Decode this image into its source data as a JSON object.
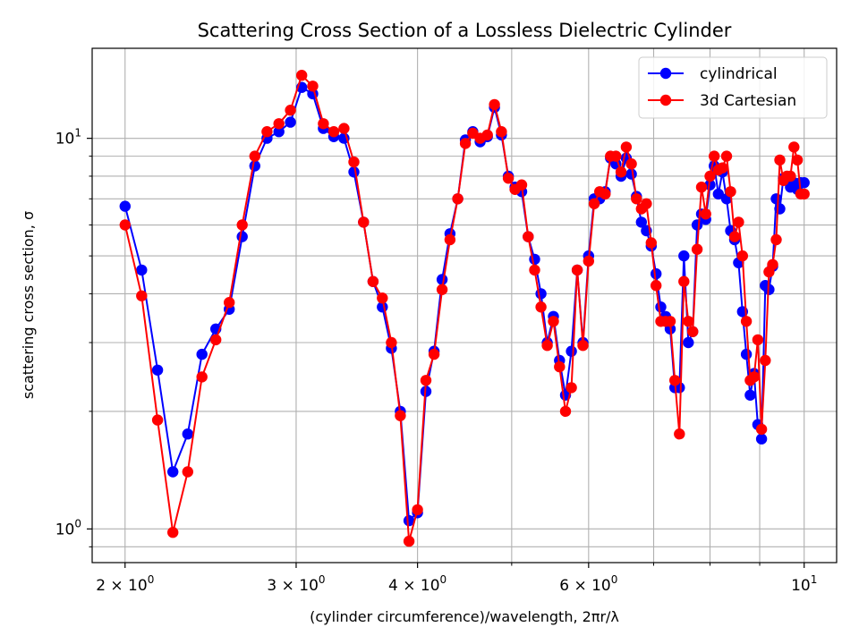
{
  "chart_data": {
    "type": "line",
    "title": "Scattering Cross Section of a Lossless Dielectric Cylinder",
    "xlabel": "(cylinder circumference)/wavelength, 2πr/λ",
    "ylabel": "scattering cross section, σ",
    "xscale": "log",
    "yscale": "log",
    "xlim": [
      1.85,
      10.8
    ],
    "ylim": [
      0.82,
      17.0
    ],
    "grid": true,
    "legend_position": "top-right",
    "x_ticks": [
      {
        "base": "2",
        "exp": "0",
        "value": 2
      },
      {
        "base": "3",
        "exp": "0",
        "value": 3
      },
      {
        "base": "4",
        "exp": "0",
        "value": 4
      },
      {
        "base": "6",
        "exp": "0",
        "value": 6
      },
      {
        "base": "10",
        "exp": "1",
        "value": 10
      }
    ],
    "y_ticks": [
      {
        "base": "10",
        "exp": "0",
        "value": 1
      },
      {
        "base": "10",
        "exp": "1",
        "value": 10
      }
    ],
    "series": [
      {
        "name": "cylindrical",
        "color": "#0000ff",
        "x": [
          2.0,
          2.08,
          2.16,
          2.24,
          2.32,
          2.4,
          2.48,
          2.56,
          2.64,
          2.72,
          2.8,
          2.88,
          2.96,
          3.04,
          3.12,
          3.2,
          3.28,
          3.36,
          3.44,
          3.52,
          3.6,
          3.68,
          3.76,
          3.84,
          3.92,
          4.0,
          4.08,
          4.16,
          4.24,
          4.32,
          4.4,
          4.48,
          4.56,
          4.64,
          4.72,
          4.8,
          4.88,
          4.96,
          5.04,
          5.12,
          5.2,
          5.28,
          5.36,
          5.44,
          5.52,
          5.6,
          5.68,
          5.76,
          5.84,
          5.92,
          6.0,
          6.08,
          6.16,
          6.24,
          6.32,
          6.4,
          6.48,
          6.56,
          6.64,
          6.72,
          6.8,
          6.88,
          6.96,
          7.04,
          7.12,
          7.2,
          7.28,
          7.36,
          7.44,
          7.52,
          7.6,
          7.68,
          7.76,
          7.84,
          7.92,
          8.0,
          8.08,
          8.16,
          8.24,
          8.32,
          8.4,
          8.48,
          8.56,
          8.64,
          8.72,
          8.8,
          8.88,
          8.96,
          9.04,
          9.12,
          9.2,
          9.28,
          9.36,
          9.44,
          9.52,
          9.6,
          9.68,
          9.76,
          9.84,
          9.92,
          10.0
        ],
        "y": [
          6.7,
          4.6,
          2.55,
          1.4,
          1.75,
          2.8,
          3.25,
          3.65,
          5.6,
          8.5,
          10.0,
          10.4,
          11.0,
          13.5,
          13.0,
          10.6,
          10.1,
          10.0,
          8.2,
          6.1,
          4.3,
          3.7,
          2.9,
          2.0,
          1.05,
          1.1,
          2.25,
          2.85,
          4.35,
          5.7,
          7.0,
          9.9,
          10.4,
          9.8,
          10.1,
          12.0,
          10.2,
          8.0,
          7.5,
          7.3,
          5.6,
          4.9,
          4.0,
          3.0,
          3.5,
          2.7,
          2.2,
          2.85,
          4.6,
          3.0,
          5.0,
          7.0,
          7.0,
          7.3,
          8.9,
          8.6,
          8.0,
          8.9,
          8.1,
          7.1,
          6.1,
          5.8,
          5.3,
          4.5,
          3.7,
          3.5,
          3.25,
          2.3,
          2.3,
          5.0,
          3.0,
          3.2,
          6.0,
          6.4,
          6.2,
          7.6,
          8.5,
          7.2,
          8.2,
          7.0,
          5.8,
          5.5,
          4.8,
          3.6,
          2.8,
          2.2,
          2.5,
          1.85,
          1.7,
          4.2,
          4.1,
          4.7,
          7.0,
          6.6,
          7.9,
          7.8,
          7.5,
          7.7,
          7.4,
          7.7,
          7.7
        ]
      },
      {
        "name": "3d Cartesian",
        "color": "#ff0000",
        "x": [
          2.0,
          2.08,
          2.16,
          2.24,
          2.32,
          2.4,
          2.48,
          2.56,
          2.64,
          2.72,
          2.8,
          2.88,
          2.96,
          3.04,
          3.12,
          3.2,
          3.28,
          3.36,
          3.44,
          3.52,
          3.6,
          3.68,
          3.76,
          3.84,
          3.92,
          4.0,
          4.08,
          4.16,
          4.24,
          4.32,
          4.4,
          4.48,
          4.56,
          4.64,
          4.72,
          4.8,
          4.88,
          4.96,
          5.04,
          5.12,
          5.2,
          5.28,
          5.36,
          5.44,
          5.52,
          5.6,
          5.68,
          5.76,
          5.84,
          5.92,
          6.0,
          6.08,
          6.16,
          6.24,
          6.32,
          6.4,
          6.48,
          6.56,
          6.64,
          6.72,
          6.8,
          6.88,
          6.96,
          7.04,
          7.12,
          7.2,
          7.28,
          7.36,
          7.44,
          7.52,
          7.6,
          7.68,
          7.76,
          7.84,
          7.92,
          8.0,
          8.08,
          8.16,
          8.24,
          8.32,
          8.4,
          8.48,
          8.56,
          8.64,
          8.72,
          8.8,
          8.88,
          8.96,
          9.04,
          9.12,
          9.2,
          9.28,
          9.36,
          9.44,
          9.52,
          9.6,
          9.68,
          9.76,
          9.84,
          9.92,
          10.0
        ],
        "y": [
          6.0,
          3.95,
          1.9,
          0.98,
          1.4,
          2.45,
          3.05,
          3.8,
          6.0,
          9.0,
          10.4,
          10.9,
          11.8,
          14.5,
          13.6,
          10.9,
          10.4,
          10.6,
          8.7,
          6.1,
          4.3,
          3.9,
          3.0,
          1.95,
          0.93,
          1.12,
          2.4,
          2.8,
          4.1,
          5.5,
          7.0,
          9.7,
          10.3,
          10.0,
          10.2,
          12.2,
          10.4,
          7.9,
          7.4,
          7.6,
          5.6,
          4.6,
          3.7,
          2.95,
          3.4,
          2.6,
          2.0,
          2.3,
          4.6,
          2.95,
          4.85,
          6.8,
          7.3,
          7.2,
          9.0,
          9.0,
          8.2,
          9.5,
          8.6,
          7.0,
          6.6,
          6.8,
          5.4,
          4.2,
          3.4,
          3.4,
          3.4,
          2.4,
          1.75,
          4.3,
          3.4,
          3.2,
          5.2,
          7.5,
          6.4,
          8.0,
          9.0,
          8.3,
          8.4,
          9.0,
          7.3,
          5.6,
          6.1,
          5.0,
          3.4,
          2.4,
          2.45,
          3.05,
          1.8,
          2.7,
          4.55,
          4.75,
          5.5,
          8.8,
          7.8,
          8.0,
          8.0,
          9.5,
          8.8,
          7.2,
          7.2
        ]
      }
    ]
  }
}
